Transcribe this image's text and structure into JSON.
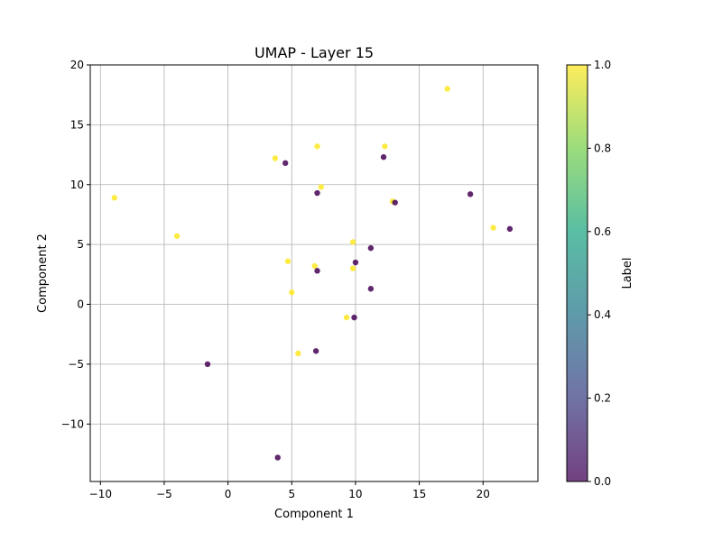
{
  "chart_data": {
    "type": "scatter",
    "title": "UMAP - Layer 15",
    "xlabel": "Component 1",
    "ylabel": "Component 2",
    "xlim": [
      -10.8,
      24.3
    ],
    "ylim": [
      -14.8,
      20
    ],
    "xticks": [
      -10,
      -5,
      0,
      5,
      10,
      15,
      20
    ],
    "xtick_labels": [
      "−10",
      "−5",
      "0",
      "5",
      "10",
      "15",
      "20"
    ],
    "yticks": [
      -10,
      -5,
      0,
      5,
      10,
      15,
      20
    ],
    "ytick_labels": [
      "−10",
      "−5",
      "0",
      "5",
      "10",
      "15",
      "20"
    ],
    "grid": true,
    "colormap": "viridis",
    "color_range": [
      0,
      1
    ],
    "colors": {
      "label_0": "#440154",
      "label_1": "#fde725"
    },
    "colorbar": {
      "label": "Label",
      "ticks": [
        0.0,
        0.2,
        0.4,
        0.6,
        0.8,
        1.0
      ],
      "tick_labels": [
        "0.0",
        "0.2",
        "0.4",
        "0.6",
        "0.8",
        "1.0"
      ]
    },
    "series": [
      {
        "label_value": 1,
        "clusters": [
          {
            "x": 17.2,
            "y": 18.0
          },
          {
            "x": 7.0,
            "y": 13.2
          },
          {
            "x": 12.3,
            "y": 13.2
          },
          {
            "x": 3.7,
            "y": 12.2
          },
          {
            "x": -8.9,
            "y": 8.9
          },
          {
            "x": -4.0,
            "y": 5.7
          },
          {
            "x": 9.8,
            "y": 5.2
          },
          {
            "x": 4.7,
            "y": 3.6
          },
          {
            "x": 6.8,
            "y": 3.2
          },
          {
            "x": 9.8,
            "y": 3.0
          },
          {
            "x": 5.0,
            "y": 1.0
          },
          {
            "x": 20.8,
            "y": 6.4
          },
          {
            "x": 5.5,
            "y": -4.1
          },
          {
            "x": 9.3,
            "y": -1.1
          },
          {
            "x": 7.3,
            "y": 9.8
          },
          {
            "x": 12.9,
            "y": 8.6
          }
        ]
      },
      {
        "label_value": 0,
        "clusters": [
          {
            "x": 7.0,
            "y": 9.3
          },
          {
            "x": 13.1,
            "y": 8.5
          },
          {
            "x": 19.0,
            "y": 9.2
          },
          {
            "x": 22.1,
            "y": 6.3
          },
          {
            "x": 11.2,
            "y": 4.7
          },
          {
            "x": 10.0,
            "y": 3.5
          },
          {
            "x": 11.2,
            "y": 1.3
          },
          {
            "x": 9.9,
            "y": -1.1
          },
          {
            "x": 6.9,
            "y": -3.9
          },
          {
            "x": -1.6,
            "y": -5.0
          },
          {
            "x": 3.9,
            "y": -12.8
          },
          {
            "x": 4.5,
            "y": 11.8
          },
          {
            "x": 12.2,
            "y": 12.3
          },
          {
            "x": 7.0,
            "y": 2.8
          }
        ]
      }
    ]
  }
}
